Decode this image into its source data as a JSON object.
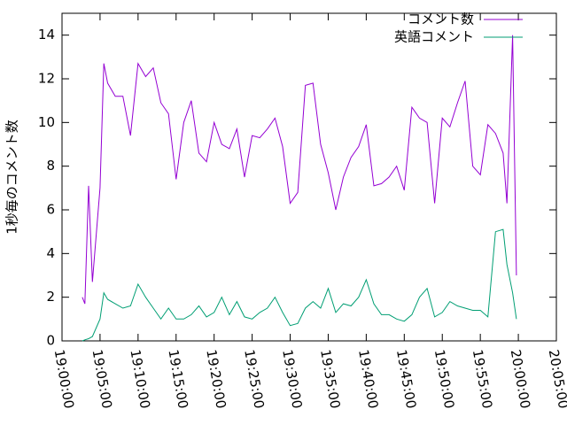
{
  "chart_data": {
    "type": "line",
    "y_label": "1秒毎のコメント数",
    "x": [
      "19:02:40",
      "19:03:00",
      "19:03:30",
      "19:04:00",
      "19:05:00",
      "19:05:30",
      "19:06:00",
      "19:07:00",
      "19:08:00",
      "19:09:00",
      "19:10:00",
      "19:11:00",
      "19:12:00",
      "19:13:00",
      "19:14:00",
      "19:15:00",
      "19:16:00",
      "19:17:00",
      "19:18:00",
      "19:19:00",
      "19:20:00",
      "19:21:00",
      "19:22:00",
      "19:23:00",
      "19:24:00",
      "19:25:00",
      "19:26:00",
      "19:27:00",
      "19:28:00",
      "19:29:00",
      "19:30:00",
      "19:31:00",
      "19:32:00",
      "19:33:00",
      "19:34:00",
      "19:35:00",
      "19:36:00",
      "19:37:00",
      "19:38:00",
      "19:39:00",
      "19:40:00",
      "19:41:00",
      "19:42:00",
      "19:43:00",
      "19:44:00",
      "19:45:00",
      "19:46:00",
      "19:47:00",
      "19:48:00",
      "19:49:00",
      "19:50:00",
      "19:51:00",
      "19:52:00",
      "19:53:00",
      "19:54:00",
      "19:55:00",
      "19:56:00",
      "19:57:00",
      "19:58:00",
      "19:58:30",
      "19:59:15",
      "19:59:45"
    ],
    "series": [
      {
        "name": "コメント数",
        "color": "#9400d3",
        "values": [
          2.0,
          1.7,
          7.1,
          2.7,
          7.0,
          12.7,
          11.8,
          11.2,
          11.2,
          9.4,
          12.7,
          12.1,
          12.5,
          10.9,
          10.4,
          7.4,
          10.0,
          11.0,
          8.6,
          8.2,
          10.0,
          9.0,
          8.8,
          9.7,
          7.5,
          9.4,
          9.3,
          9.7,
          10.2,
          8.9,
          6.3,
          6.8,
          11.7,
          11.8,
          9.0,
          7.7,
          6.0,
          7.5,
          8.4,
          8.9,
          9.9,
          7.1,
          7.2,
          7.5,
          8.0,
          6.9,
          10.7,
          10.2,
          10.0,
          6.3,
          10.2,
          9.8,
          10.9,
          11.9,
          8.0,
          7.6,
          9.9,
          9.5,
          8.6,
          6.3,
          14.0,
          3.0
        ]
      },
      {
        "name": "英語コメント",
        "color": "#009e73",
        "values": [
          0.0,
          0.05,
          0.1,
          0.2,
          1.0,
          2.2,
          1.9,
          1.7,
          1.5,
          1.6,
          2.6,
          2.0,
          1.5,
          1.0,
          1.5,
          1.0,
          1.0,
          1.2,
          1.6,
          1.1,
          1.3,
          2.0,
          1.2,
          1.8,
          1.1,
          1.0,
          1.3,
          1.5,
          2.0,
          1.3,
          0.7,
          0.8,
          1.5,
          1.8,
          1.5,
          2.4,
          1.3,
          1.7,
          1.6,
          2.0,
          2.8,
          1.7,
          1.2,
          1.2,
          1.0,
          0.9,
          1.2,
          2.0,
          2.4,
          1.1,
          1.3,
          1.8,
          1.6,
          1.5,
          1.4,
          1.4,
          1.1,
          5.0,
          5.1,
          3.5,
          2.2,
          1.0
        ]
      }
    ],
    "xlim": [
      "19:00:00",
      "20:05:00"
    ],
    "xticks": [
      "19:00:00",
      "19:05:00",
      "19:10:00",
      "19:15:00",
      "19:20:00",
      "19:25:00",
      "19:30:00",
      "19:35:00",
      "19:40:00",
      "19:45:00",
      "19:50:00",
      "19:55:00",
      "20:00:00",
      "20:05:00"
    ],
    "ylim": [
      0,
      15
    ],
    "yticks": [
      0,
      2,
      4,
      6,
      8,
      10,
      12,
      14
    ],
    "legend": "top-right"
  }
}
